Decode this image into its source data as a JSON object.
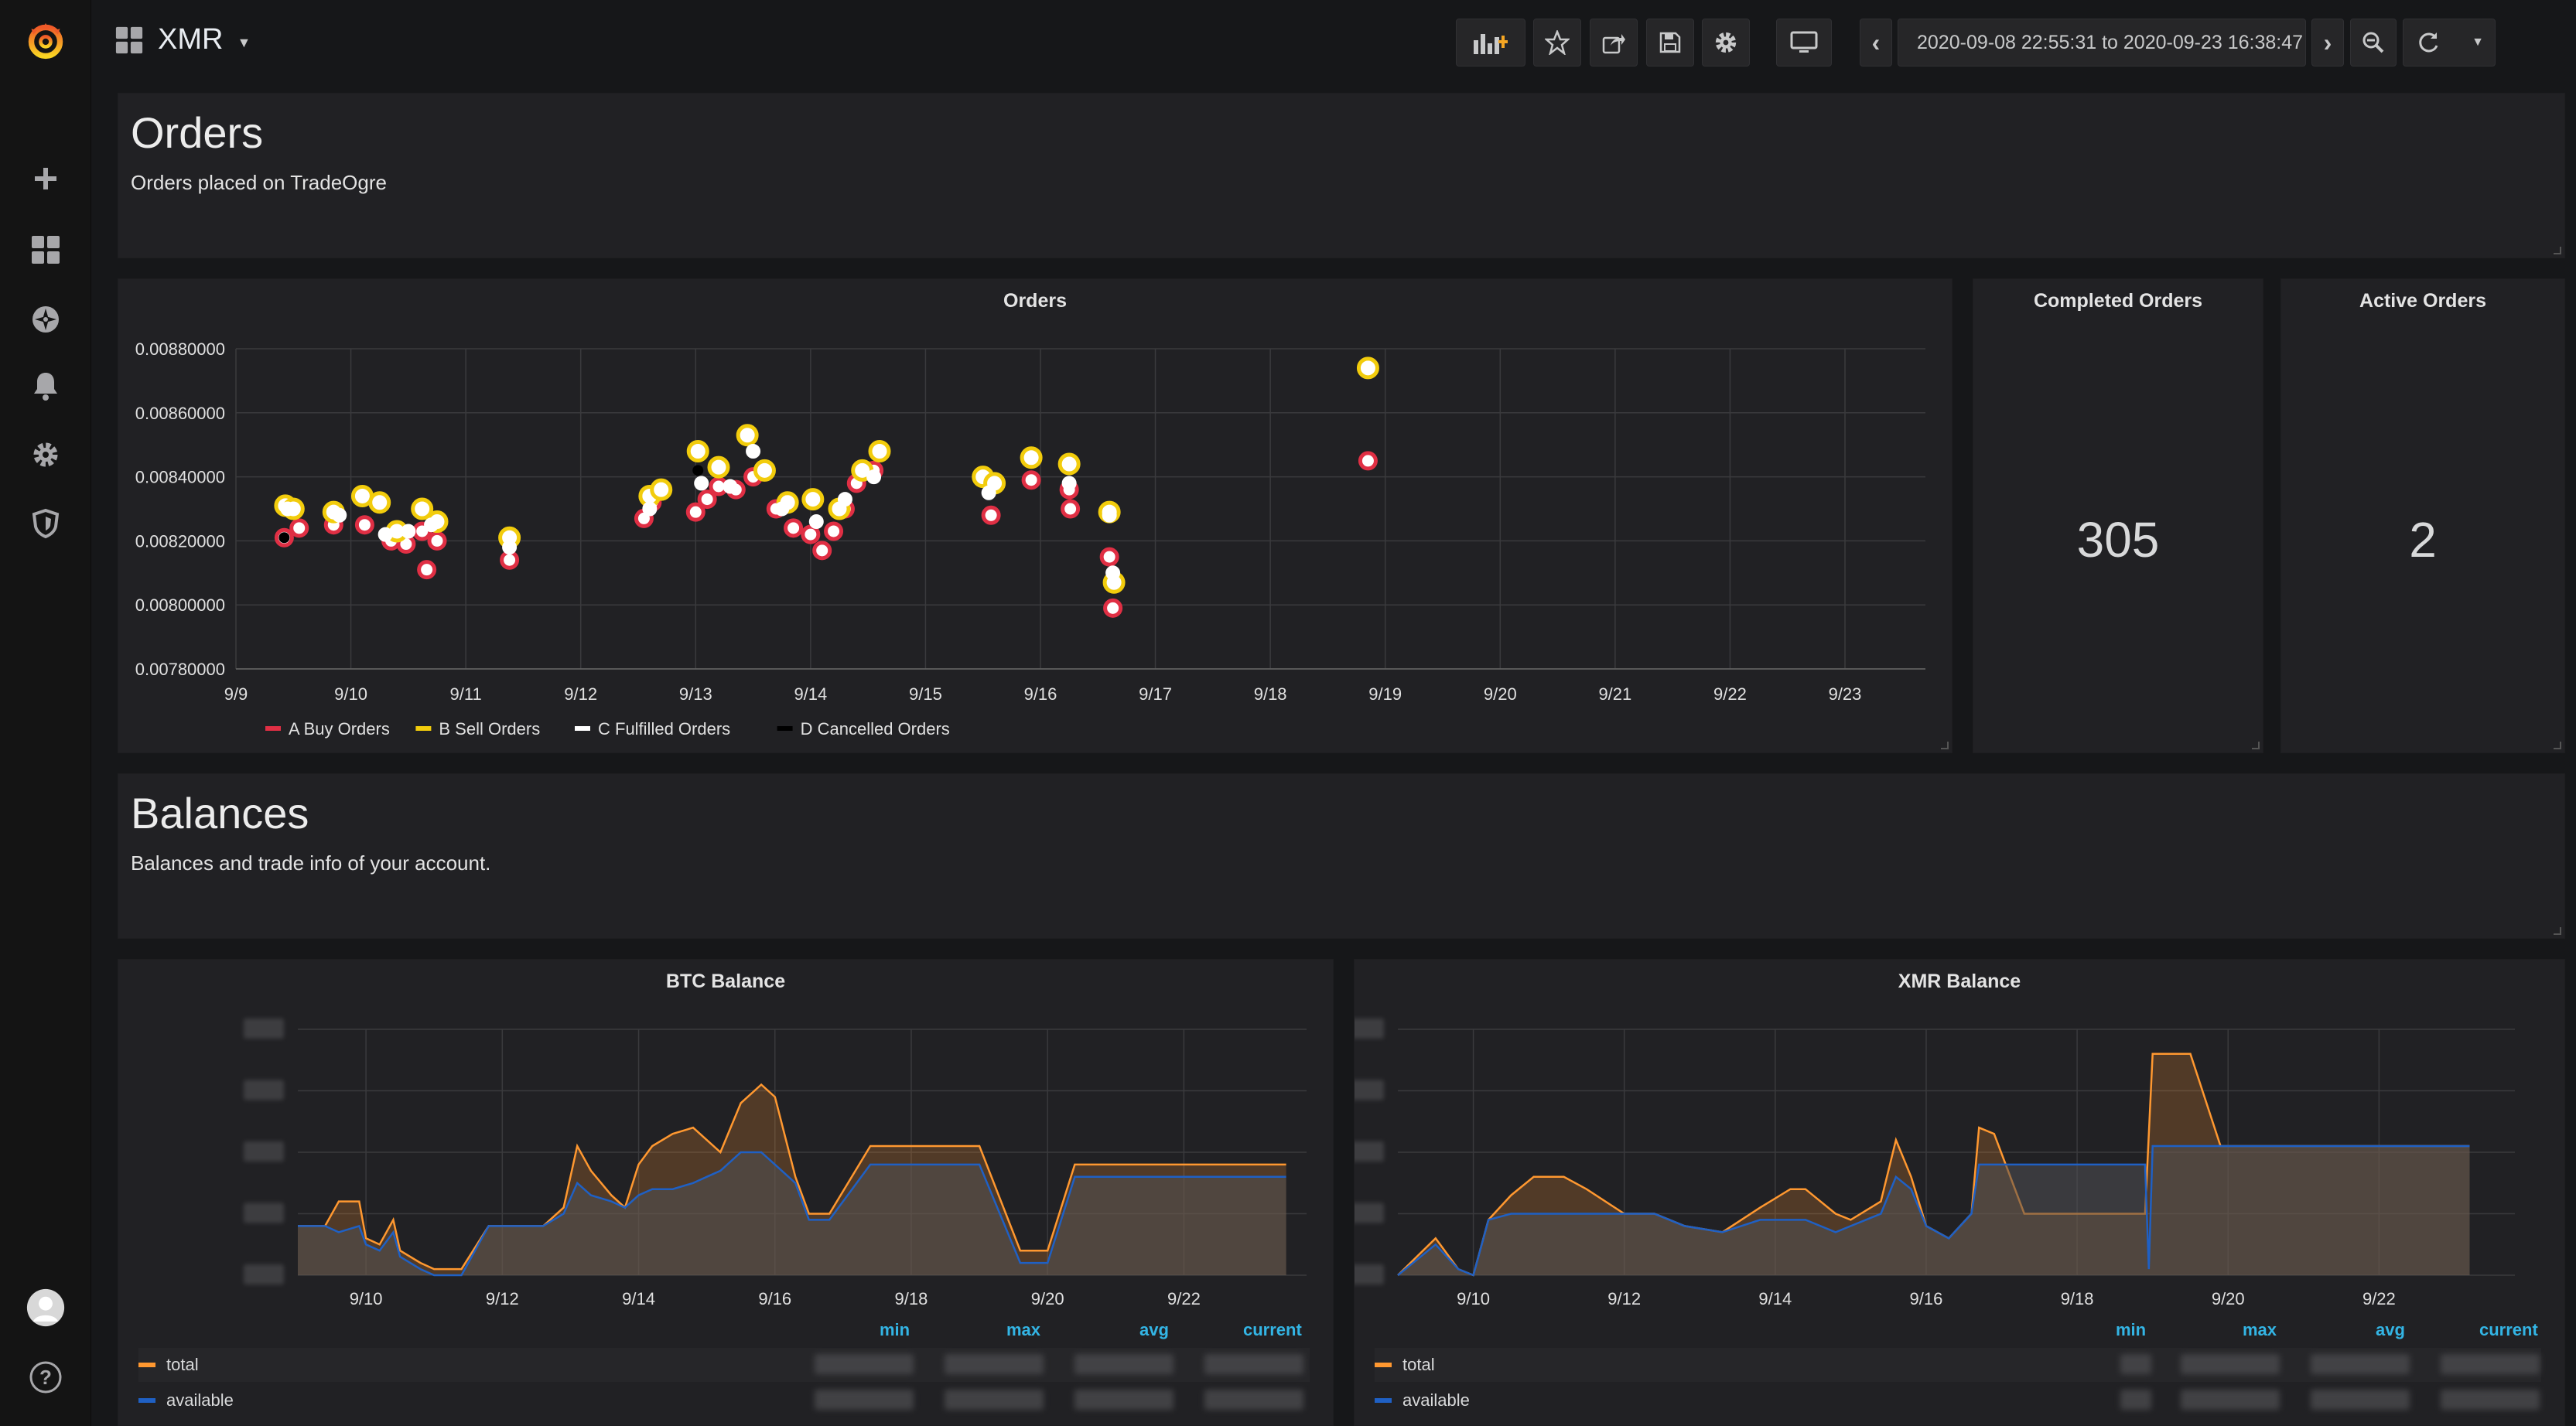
{
  "dashboard": {
    "title": "XMR"
  },
  "time_range": "2020-09-08 22:55:31 to 2020-09-23 16:38:47",
  "colors": {
    "buy": "#e02f44",
    "sell": "#f2cc0c",
    "fulfilled": "#ffffff",
    "cancelled": "#000000",
    "total": "#ff9830",
    "available": "#1f60c4",
    "legend_header": "#33b5e5"
  },
  "icons": {
    "sidebar": [
      "grafana-logo-icon",
      "plus-icon",
      "dashboards-grid-icon",
      "explore-compass-icon",
      "alert-bell-icon",
      "configuration-gear-icon",
      "server-admin-shield-icon",
      "user-avatar-icon",
      "help-question-icon"
    ],
    "toolbar": [
      "add-panel-icon",
      "star-icon",
      "share-icon",
      "save-icon",
      "settings-gear-icon",
      "tv-mode-icon",
      "chevron-left-icon",
      "clock-icon",
      "chevron-right-icon",
      "zoom-out-icon",
      "refresh-icon",
      "caret-down-icon"
    ]
  },
  "orders_text": {
    "title": "Orders",
    "description": "Orders placed on TradeOgre"
  },
  "balances_text": {
    "title": "Balances",
    "description": "Balances and trade info of your account."
  },
  "stats": [
    {
      "title": "Completed Orders",
      "value": "305"
    },
    {
      "title": "Active Orders",
      "value": "2"
    }
  ],
  "chart_data": [
    {
      "type": "scatter",
      "title": "Orders",
      "x_ticks": [
        "9/9",
        "9/10",
        "9/11",
        "9/12",
        "9/13",
        "9/14",
        "9/15",
        "9/16",
        "9/17",
        "9/18",
        "9/19",
        "9/20",
        "9/21",
        "9/22",
        "9/23"
      ],
      "y_ticks": [
        "0.00780000",
        "0.00800000",
        "0.00820000",
        "0.00840000",
        "0.00860000",
        "0.00880000"
      ],
      "ylim": [
        0.0078,
        0.0088
      ],
      "xlim_days": [
        9.0,
        23.7
      ],
      "legend": [
        "A Buy Orders",
        "B Sell Orders",
        "C Fulfilled Orders",
        "D Cancelled Orders"
      ],
      "series": [
        {
          "name": "A Buy Orders",
          "points": [
            [
              9.42,
              0.00821
            ],
            [
              9.55,
              0.00824
            ],
            [
              9.85,
              0.00825
            ],
            [
              10.12,
              0.00825
            ],
            [
              10.35,
              0.0082
            ],
            [
              10.48,
              0.00819
            ],
            [
              10.62,
              0.00823
            ],
            [
              10.66,
              0.00811
            ],
            [
              10.75,
              0.0082
            ],
            [
              11.38,
              0.00814
            ],
            [
              12.55,
              0.00827
            ],
            [
              12.62,
              0.00832
            ],
            [
              13.0,
              0.00829
            ],
            [
              13.1,
              0.00833
            ],
            [
              13.2,
              0.00837
            ],
            [
              13.35,
              0.00836
            ],
            [
              13.5,
              0.0084
            ],
            [
              13.7,
              0.0083
            ],
            [
              13.85,
              0.00824
            ],
            [
              14.0,
              0.00822
            ],
            [
              14.1,
              0.00817
            ],
            [
              14.2,
              0.00823
            ],
            [
              14.3,
              0.0083
            ],
            [
              14.4,
              0.00838
            ],
            [
              14.55,
              0.00842
            ],
            [
              15.57,
              0.00828
            ],
            [
              15.92,
              0.00839
            ],
            [
              16.25,
              0.00836
            ],
            [
              16.26,
              0.0083
            ],
            [
              16.6,
              0.00815
            ],
            [
              16.63,
              0.00799
            ],
            [
              18.85,
              0.00845
            ]
          ]
        },
        {
          "name": "B Sell Orders",
          "points": [
            [
              9.43,
              0.00831
            ],
            [
              9.5,
              0.0083
            ],
            [
              9.85,
              0.00829
            ],
            [
              10.1,
              0.00834
            ],
            [
              10.25,
              0.00832
            ],
            [
              10.4,
              0.00823
            ],
            [
              10.62,
              0.0083
            ],
            [
              10.75,
              0.00826
            ],
            [
              11.38,
              0.00821
            ],
            [
              12.6,
              0.00834
            ],
            [
              12.7,
              0.00836
            ],
            [
              13.02,
              0.00848
            ],
            [
              13.2,
              0.00843
            ],
            [
              13.45,
              0.00853
            ],
            [
              13.6,
              0.00842
            ],
            [
              13.8,
              0.00832
            ],
            [
              14.02,
              0.00833
            ],
            [
              14.25,
              0.0083
            ],
            [
              14.45,
              0.00842
            ],
            [
              14.6,
              0.00848
            ],
            [
              15.5,
              0.0084
            ],
            [
              15.6,
              0.00838
            ],
            [
              15.92,
              0.00846
            ],
            [
              16.25,
              0.00844
            ],
            [
              16.6,
              0.00829
            ],
            [
              16.64,
              0.00807
            ],
            [
              18.85,
              0.00874
            ]
          ]
        },
        {
          "name": "C Fulfilled Orders",
          "points": [
            [
              9.45,
              0.0083
            ],
            [
              9.9,
              0.00828
            ],
            [
              10.3,
              0.00822
            ],
            [
              10.5,
              0.00823
            ],
            [
              10.7,
              0.00825
            ],
            [
              11.38,
              0.00818
            ],
            [
              12.6,
              0.0083
            ],
            [
              13.05,
              0.00838
            ],
            [
              13.3,
              0.00837
            ],
            [
              13.5,
              0.00848
            ],
            [
              13.75,
              0.0083
            ],
            [
              14.05,
              0.00826
            ],
            [
              14.3,
              0.00833
            ],
            [
              14.55,
              0.0084
            ],
            [
              15.55,
              0.00835
            ],
            [
              16.25,
              0.00838
            ],
            [
              16.6,
              0.00828
            ],
            [
              16.63,
              0.0081
            ]
          ]
        },
        {
          "name": "D Cancelled Orders",
          "points": [
            [
              9.42,
              0.00821
            ],
            [
              13.02,
              0.00842
            ]
          ]
        }
      ]
    },
    {
      "type": "area",
      "title": "BTC Balance",
      "x_ticks": [
        "9/10",
        "9/12",
        "9/14",
        "9/16",
        "9/18",
        "9/20",
        "9/22"
      ],
      "xlim_days": [
        9.0,
        23.8
      ],
      "ylim": [
        0,
        4
      ],
      "legend_columns": [
        "min",
        "max",
        "avg",
        "current"
      ],
      "series": [
        {
          "name": "total",
          "points": [
            [
              9.0,
              0.8
            ],
            [
              9.4,
              0.8
            ],
            [
              9.6,
              1.2
            ],
            [
              9.9,
              1.2
            ],
            [
              10.0,
              0.6
            ],
            [
              10.2,
              0.5
            ],
            [
              10.4,
              0.9
            ],
            [
              10.5,
              0.4
            ],
            [
              10.8,
              0.2
            ],
            [
              11.0,
              0.1
            ],
            [
              11.4,
              0.1
            ],
            [
              11.8,
              0.8
            ],
            [
              12.6,
              0.8
            ],
            [
              12.9,
              1.1
            ],
            [
              13.1,
              2.1
            ],
            [
              13.3,
              1.7
            ],
            [
              13.6,
              1.3
            ],
            [
              13.8,
              1.1
            ],
            [
              14.0,
              1.8
            ],
            [
              14.2,
              2.1
            ],
            [
              14.5,
              2.3
            ],
            [
              14.8,
              2.4
            ],
            [
              15.0,
              2.2
            ],
            [
              15.2,
              2.0
            ],
            [
              15.5,
              2.8
            ],
            [
              15.8,
              3.1
            ],
            [
              16.0,
              2.9
            ],
            [
              16.3,
              1.6
            ],
            [
              16.5,
              1.0
            ],
            [
              16.8,
              1.0
            ],
            [
              17.4,
              2.1
            ],
            [
              18.6,
              2.1
            ],
            [
              19.0,
              2.1
            ],
            [
              19.6,
              0.4
            ],
            [
              20.0,
              0.4
            ],
            [
              20.4,
              1.8
            ],
            [
              21.0,
              1.8
            ],
            [
              23.5,
              1.8
            ]
          ]
        },
        {
          "name": "available",
          "points": [
            [
              9.0,
              0.8
            ],
            [
              9.4,
              0.8
            ],
            [
              9.6,
              0.7
            ],
            [
              9.9,
              0.8
            ],
            [
              10.0,
              0.5
            ],
            [
              10.2,
              0.4
            ],
            [
              10.4,
              0.7
            ],
            [
              10.5,
              0.3
            ],
            [
              10.8,
              0.1
            ],
            [
              11.0,
              0.0
            ],
            [
              11.4,
              0.0
            ],
            [
              11.8,
              0.8
            ],
            [
              12.6,
              0.8
            ],
            [
              12.9,
              1.0
            ],
            [
              13.1,
              1.5
            ],
            [
              13.3,
              1.3
            ],
            [
              13.6,
              1.2
            ],
            [
              13.8,
              1.1
            ],
            [
              14.0,
              1.3
            ],
            [
              14.2,
              1.4
            ],
            [
              14.5,
              1.4
            ],
            [
              14.8,
              1.5
            ],
            [
              15.0,
              1.6
            ],
            [
              15.2,
              1.7
            ],
            [
              15.5,
              2.0
            ],
            [
              15.8,
              2.0
            ],
            [
              16.0,
              1.8
            ],
            [
              16.3,
              1.5
            ],
            [
              16.5,
              0.9
            ],
            [
              16.8,
              0.9
            ],
            [
              17.4,
              1.8
            ],
            [
              18.6,
              1.8
            ],
            [
              19.0,
              1.8
            ],
            [
              19.3,
              1.0
            ],
            [
              19.6,
              0.2
            ],
            [
              20.0,
              0.2
            ],
            [
              20.4,
              1.6
            ],
            [
              21.0,
              1.6
            ],
            [
              23.5,
              1.6
            ]
          ]
        }
      ]
    },
    {
      "type": "area",
      "title": "XMR Balance",
      "x_ticks": [
        "9/10",
        "9/12",
        "9/14",
        "9/16",
        "9/18",
        "9/20",
        "9/22"
      ],
      "xlim_days": [
        9.0,
        23.8
      ],
      "ylim": [
        0,
        4
      ],
      "legend_columns": [
        "min",
        "max",
        "avg",
        "current"
      ],
      "series": [
        {
          "name": "total",
          "points": [
            [
              9.0,
              0.0
            ],
            [
              9.5,
              0.6
            ],
            [
              9.8,
              0.1
            ],
            [
              10.0,
              0.0
            ],
            [
              10.2,
              0.9
            ],
            [
              10.5,
              1.3
            ],
            [
              10.8,
              1.6
            ],
            [
              11.2,
              1.6
            ],
            [
              11.5,
              1.4
            ],
            [
              12.0,
              1.0
            ],
            [
              12.4,
              1.0
            ],
            [
              12.8,
              0.8
            ],
            [
              13.3,
              0.7
            ],
            [
              13.8,
              1.1
            ],
            [
              14.2,
              1.4
            ],
            [
              14.4,
              1.4
            ],
            [
              14.8,
              1.0
            ],
            [
              15.0,
              0.9
            ],
            [
              15.4,
              1.2
            ],
            [
              15.6,
              2.2
            ],
            [
              15.8,
              1.6
            ],
            [
              16.0,
              0.8
            ],
            [
              16.3,
              0.6
            ],
            [
              16.6,
              1.0
            ],
            [
              16.7,
              2.4
            ],
            [
              16.9,
              2.3
            ],
            [
              17.3,
              1.0
            ],
            [
              18.1,
              1.0
            ],
            [
              18.9,
              1.0
            ],
            [
              19.0,
              3.6
            ],
            [
              19.5,
              3.6
            ],
            [
              19.9,
              2.1
            ],
            [
              23.2,
              2.1
            ]
          ]
        },
        {
          "name": "available",
          "points": [
            [
              9.0,
              0.0
            ],
            [
              9.5,
              0.5
            ],
            [
              9.8,
              0.1
            ],
            [
              10.0,
              0.0
            ],
            [
              10.2,
              0.9
            ],
            [
              10.5,
              1.0
            ],
            [
              10.8,
              1.0
            ],
            [
              11.2,
              1.0
            ],
            [
              11.5,
              1.0
            ],
            [
              12.0,
              1.0
            ],
            [
              12.4,
              1.0
            ],
            [
              12.8,
              0.8
            ],
            [
              13.3,
              0.7
            ],
            [
              13.8,
              0.9
            ],
            [
              14.2,
              0.9
            ],
            [
              14.4,
              0.9
            ],
            [
              14.8,
              0.7
            ],
            [
              15.0,
              0.8
            ],
            [
              15.4,
              1.0
            ],
            [
              15.6,
              1.6
            ],
            [
              15.8,
              1.4
            ],
            [
              16.0,
              0.8
            ],
            [
              16.3,
              0.6
            ],
            [
              16.6,
              1.0
            ],
            [
              16.7,
              1.8
            ],
            [
              16.9,
              1.8
            ],
            [
              17.3,
              1.8
            ],
            [
              18.1,
              1.8
            ],
            [
              18.9,
              1.8
            ],
            [
              18.95,
              0.1
            ],
            [
              19.0,
              2.1
            ],
            [
              19.5,
              2.1
            ],
            [
              19.9,
              2.1
            ],
            [
              23.2,
              2.1
            ]
          ]
        }
      ]
    }
  ]
}
